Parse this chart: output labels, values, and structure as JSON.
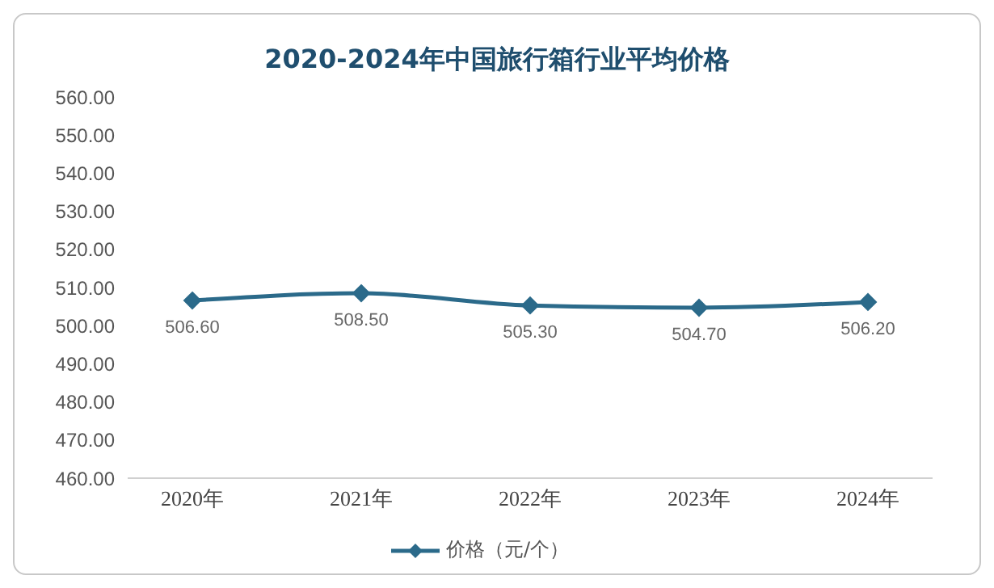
{
  "chart_data": {
    "type": "line",
    "title": "2020-2024年中国旅行箱行业平均价格",
    "categories": [
      "2020年",
      "2021年",
      "2022年",
      "2023年",
      "2024年"
    ],
    "series": [
      {
        "name": "价格（元/个）",
        "color": "#2b6a8a",
        "values": [
          506.6,
          508.5,
          505.3,
          504.7,
          506.2
        ],
        "value_labels": [
          "506.60",
          "508.50",
          "505.30",
          "504.70",
          "506.20"
        ]
      }
    ],
    "ylim": [
      460,
      560
    ],
    "yticks": [
      {
        "value": 460,
        "label": "460.00"
      },
      {
        "value": 470,
        "label": "470.00"
      },
      {
        "value": 480,
        "label": "480.00"
      },
      {
        "value": 490,
        "label": "490.00"
      },
      {
        "value": 500,
        "label": "500.00"
      },
      {
        "value": 510,
        "label": "510.00"
      },
      {
        "value": 520,
        "label": "520.00"
      },
      {
        "value": 530,
        "label": "530.00"
      },
      {
        "value": 540,
        "label": "540.00"
      },
      {
        "value": 550,
        "label": "550.00"
      },
      {
        "value": 560,
        "label": "560.00"
      }
    ],
    "grid": false,
    "legend": "bottom",
    "marker": "diamond",
    "line_style": "solid"
  }
}
